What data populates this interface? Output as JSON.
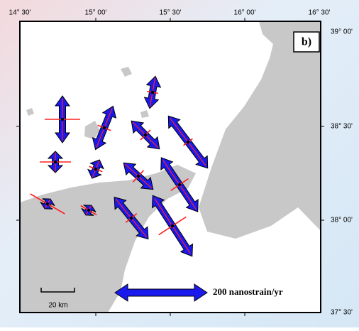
{
  "axis_labels": {
    "top": [
      "14° 30'",
      "15° 00'",
      "15° 30'",
      "16° 00'",
      "16° 30'"
    ],
    "right": [
      "39° 00'",
      "38° 30'",
      "38° 00'",
      "37° 30'"
    ]
  },
  "panel_label": "b)",
  "scale": {
    "distance": "20 km",
    "strain": "200 nanostrain/yr"
  }
}
